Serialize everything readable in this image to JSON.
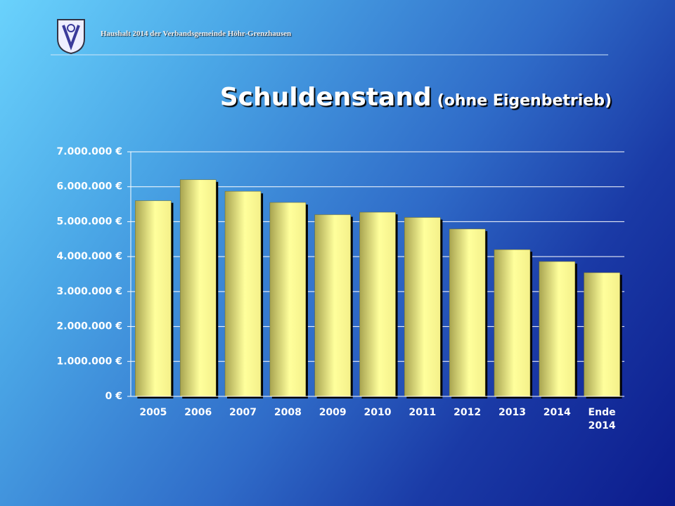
{
  "header": "Haushalt 2014 der Verbandsgemeinde Höhr-Grenzhausen",
  "chart_data": {
    "type": "bar",
    "title": "Schuldenstand",
    "subtitle": "(ohne Eigenbetrieb)",
    "categories": [
      "2005",
      "2006",
      "2007",
      "2008",
      "2009",
      "2010",
      "2011",
      "2012",
      "2013",
      "2014",
      "Ende 2014"
    ],
    "values": [
      5600000,
      6200000,
      5870000,
      5550000,
      5200000,
      5270000,
      5120000,
      4790000,
      4200000,
      3860000,
      3540000
    ],
    "color": "#ffff9c",
    "ylim": [
      0,
      7000000
    ],
    "yticks": [
      {
        "value": 0,
        "label": "0 €"
      },
      {
        "value": 1000000,
        "label": "1.000.000 €"
      },
      {
        "value": 2000000,
        "label": "2.000.000 €"
      },
      {
        "value": 3000000,
        "label": "3.000.000 €"
      },
      {
        "value": 4000000,
        "label": "4.000.000 €"
      },
      {
        "value": 5000000,
        "label": "5.000.000 €"
      },
      {
        "value": 6000000,
        "label": "6.000.000 €"
      },
      {
        "value": 7000000,
        "label": "7.000.000 €"
      }
    ],
    "grid": true
  }
}
